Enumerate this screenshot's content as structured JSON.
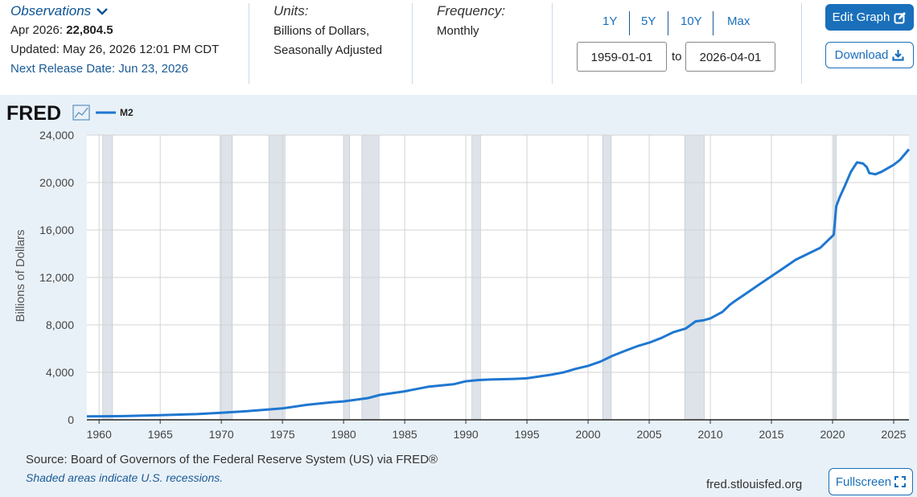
{
  "header": {
    "observations_label": "Observations",
    "obs_date": "Apr 2026:",
    "obs_value": "22,804.5",
    "updated": "Updated: May 26, 2026 12:01 PM CDT",
    "next_release": "Next Release Date: Jun 23, 2026",
    "units_label": "Units:",
    "units_line1": "Billions of Dollars,",
    "units_line2": "Seasonally Adjusted",
    "frequency_label": "Frequency:",
    "frequency_value": "Monthly",
    "ranges": [
      "1Y",
      "5Y",
      "10Y",
      "Max"
    ],
    "start_date": "1959-01-01",
    "to_label": "to",
    "end_date": "2026-04-01",
    "edit_graph": "Edit Graph",
    "download": "Download"
  },
  "graph": {
    "logo": "FRED",
    "source": "Source: Board of Governors of the Federal Reserve System (US) via FRED®",
    "recession_note": "Shaded areas indicate U.S. recessions.",
    "site": "fred.stlouisfed.org",
    "fullscreen": "Fullscreen"
  },
  "colors": {
    "line": "#1f77d0",
    "accent": "#1a6fba",
    "recession": "#dde3e9",
    "background": "#e9f1f8"
  },
  "chart_data": {
    "type": "line",
    "title": "",
    "xlabel": "",
    "ylabel": "Billions of Dollars",
    "legend": [
      "M2"
    ],
    "legend_position": "top-left",
    "grid": true,
    "xlim": [
      1959.0,
      2026.25
    ],
    "ylim": [
      0,
      24000
    ],
    "xticks": [
      1960,
      1965,
      1970,
      1975,
      1980,
      1985,
      1990,
      1995,
      2000,
      2005,
      2010,
      2015,
      2020,
      2025
    ],
    "yticks": [
      0,
      4000,
      8000,
      12000,
      16000,
      20000,
      24000
    ],
    "ytick_labels": [
      "0",
      "4,000",
      "8,000",
      "12,000",
      "16,000",
      "20,000",
      "24,000"
    ],
    "recessions": [
      [
        1960.3,
        1961.1
      ],
      [
        1969.9,
        1970.9
      ],
      [
        1973.9,
        1975.2
      ],
      [
        1980.0,
        1980.5
      ],
      [
        1981.5,
        1982.9
      ],
      [
        1990.5,
        1991.2
      ],
      [
        2001.2,
        2001.9
      ],
      [
        2007.9,
        2009.5
      ],
      [
        2020.1,
        2020.3
      ]
    ],
    "series": [
      {
        "name": "M2",
        "x": [
          1959.0,
          1962.0,
          1965.0,
          1968.0,
          1970.0,
          1972.0,
          1974.0,
          1975.0,
          1977.0,
          1979.0,
          1980.0,
          1982.0,
          1983.0,
          1985.0,
          1987.0,
          1989.0,
          1990.0,
          1991.0,
          1992.0,
          1994.0,
          1995.0,
          1997.0,
          1998.0,
          1999.0,
          2000.0,
          2001.0,
          2002.0,
          2003.0,
          2004.0,
          2005.0,
          2006.0,
          2007.0,
          2008.0,
          2008.8,
          2009.5,
          2010.0,
          2011.0,
          2011.6,
          2012.0,
          2013.0,
          2014.0,
          2015.0,
          2016.0,
          2017.0,
          2018.0,
          2019.0,
          2019.9,
          2020.1,
          2020.3,
          2020.6,
          2021.0,
          2021.5,
          2022.0,
          2022.5,
          2022.8,
          2023.0,
          2023.5,
          2024.0,
          2024.5,
          2025.0,
          2025.5,
          2026.0,
          2026.25
        ],
        "values": [
          290,
          310,
          390,
          480,
          590,
          720,
          880,
          960,
          1260,
          1480,
          1550,
          1830,
          2100,
          2400,
          2800,
          3000,
          3250,
          3350,
          3400,
          3450,
          3500,
          3800,
          4000,
          4300,
          4550,
          4900,
          5400,
          5800,
          6200,
          6500,
          6900,
          7400,
          7700,
          8300,
          8400,
          8550,
          9100,
          9700,
          10000,
          10700,
          11400,
          12100,
          12800,
          13500,
          14000,
          14500,
          15400,
          15600,
          18000,
          18800,
          19700,
          20900,
          21700,
          21600,
          21300,
          20800,
          20700,
          20900,
          21200,
          21500,
          21900,
          22500,
          22805
        ]
      }
    ]
  }
}
